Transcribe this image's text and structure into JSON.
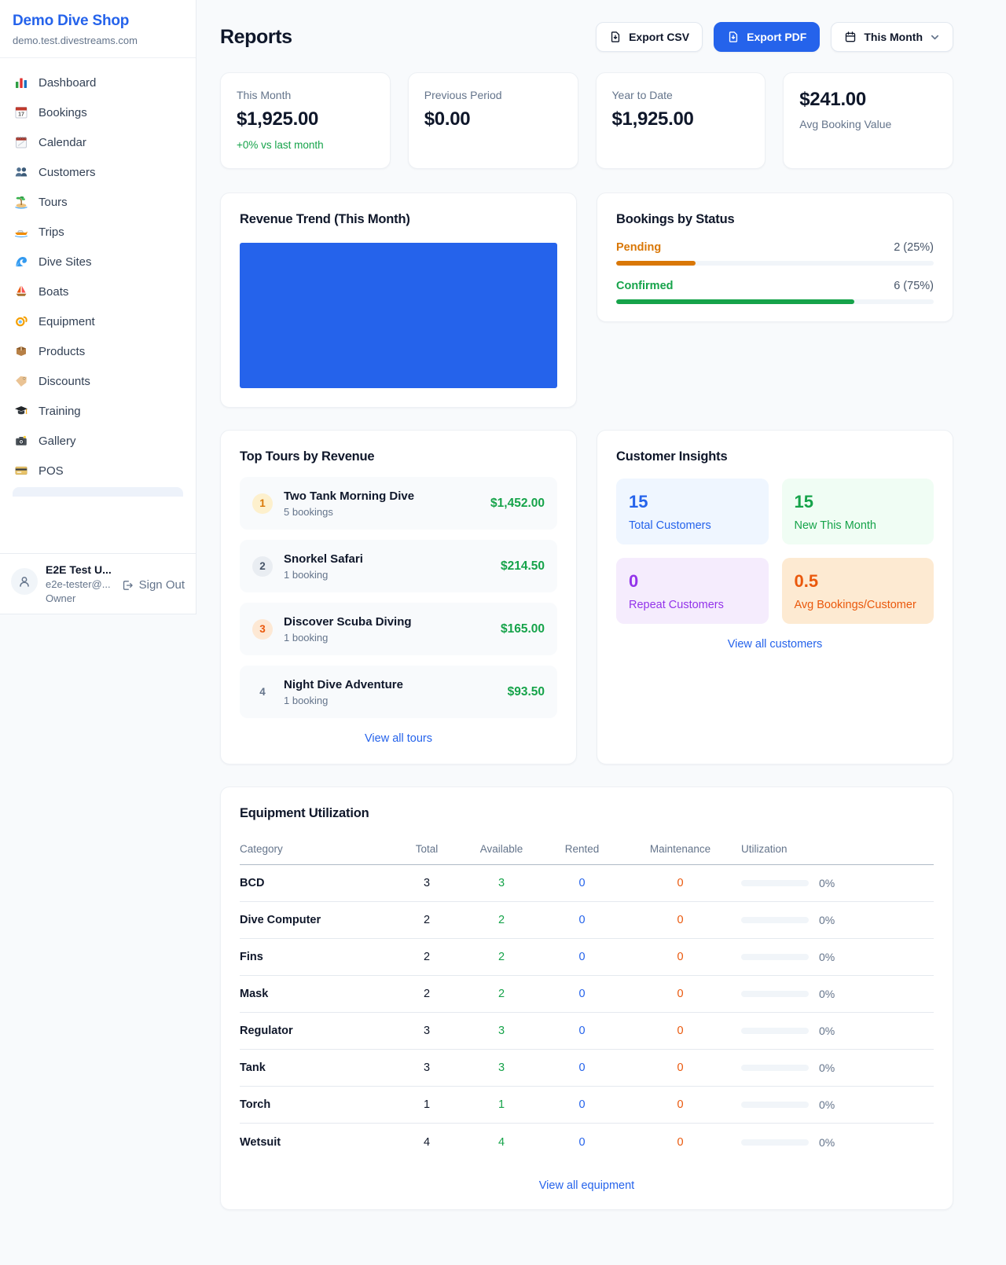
{
  "colors": {
    "accent": "#2563eb",
    "green": "#16a34a",
    "orange": "#ea580c",
    "amber": "#d97706",
    "purple": "#9333ea"
  },
  "sidebar": {
    "shop_name": "Demo Dive Shop",
    "shop_domain": "demo.test.divestreams.com",
    "items": [
      {
        "icon": "bar-chart-icon",
        "label": "Dashboard"
      },
      {
        "icon": "calendar-date-icon",
        "label": "Bookings"
      },
      {
        "icon": "spiral-calendar-icon",
        "label": "Calendar"
      },
      {
        "icon": "people-icon",
        "label": "Customers"
      },
      {
        "icon": "island-icon",
        "label": "Tours"
      },
      {
        "icon": "speedboat-icon",
        "label": "Trips"
      },
      {
        "icon": "wave-icon",
        "label": "Dive Sites"
      },
      {
        "icon": "sailboat-icon",
        "label": "Boats"
      },
      {
        "icon": "dive-mask-icon",
        "label": "Equipment"
      },
      {
        "icon": "package-icon",
        "label": "Products"
      },
      {
        "icon": "tag-icon",
        "label": "Discounts"
      },
      {
        "icon": "graduation-cap-icon",
        "label": "Training"
      },
      {
        "icon": "camera-icon",
        "label": "Gallery"
      },
      {
        "icon": "credit-card-icon",
        "label": "POS"
      }
    ],
    "user": {
      "name": "E2E Test U...",
      "email": "e2e-tester@...",
      "role": "Owner",
      "sign_out_label": "Sign Out"
    }
  },
  "header": {
    "title": "Reports",
    "export_csv_label": "Export CSV",
    "export_pdf_label": "Export PDF",
    "period_label": "This Month"
  },
  "stats": {
    "cards": [
      {
        "label": "This Month",
        "value": "$1,925.00",
        "delta": "+0% vs last month"
      },
      {
        "label": "Previous Period",
        "value": "$0.00"
      },
      {
        "label": "Year to Date",
        "value": "$1,925.00"
      },
      {
        "label": "Avg Booking Value",
        "value": "$241.00"
      }
    ]
  },
  "revenue_trend": {
    "title": "Revenue Trend (This Month)",
    "bar_color": "#2563eb",
    "chart": {
      "type": "bar",
      "note": "single full-width solid bar block"
    }
  },
  "bookings_by_status": {
    "title": "Bookings by Status",
    "rows": [
      {
        "label": "Pending",
        "count_text": "2 (25%)",
        "percent": 25,
        "color": "#d97706"
      },
      {
        "label": "Confirmed",
        "count_text": "6 (75%)",
        "percent": 75,
        "color": "#16a34a"
      }
    ]
  },
  "top_tours": {
    "title": "Top Tours by Revenue",
    "view_all_label": "View all tours",
    "rows": [
      {
        "rank": "1",
        "name": "Two Tank Morning Dive",
        "bookings": "5 bookings",
        "revenue": "$1,452.00"
      },
      {
        "rank": "2",
        "name": "Snorkel Safari",
        "bookings": "1 booking",
        "revenue": "$214.50"
      },
      {
        "rank": "3",
        "name": "Discover Scuba Diving",
        "bookings": "1 booking",
        "revenue": "$165.00"
      },
      {
        "rank": "4",
        "name": "Night Dive Adventure",
        "bookings": "1 booking",
        "revenue": "$93.50"
      }
    ]
  },
  "customer_insights": {
    "title": "Customer Insights",
    "view_all_label": "View all customers",
    "tiles": [
      {
        "value": "15",
        "label": "Total Customers",
        "bg": "#eff6ff",
        "fg": "#2563eb"
      },
      {
        "value": "15",
        "label": "New This Month",
        "bg": "#f0fdf4",
        "fg": "#16a34a"
      },
      {
        "value": "0",
        "label": "Repeat Customers",
        "bg": "#f5ecfd",
        "fg": "#9333ea"
      },
      {
        "value": "0.5",
        "label": "Avg Bookings/Customer",
        "bg": "#fdead2",
        "fg": "#ea580c"
      }
    ]
  },
  "equipment": {
    "title": "Equipment Utilization",
    "view_all_label": "View all equipment",
    "columns": [
      "Category",
      "Total",
      "Available",
      "Rented",
      "Maintenance",
      "Utilization"
    ],
    "value_colors": {
      "available": "#16a34a",
      "rented": "#2563eb",
      "maintenance": "#ea580c"
    },
    "rows": [
      {
        "category": "BCD",
        "total": "3",
        "available": "3",
        "rented": "0",
        "maintenance": "0",
        "utilization": "0%",
        "utilization_pct": 0
      },
      {
        "category": "Dive Computer",
        "total": "2",
        "available": "2",
        "rented": "0",
        "maintenance": "0",
        "utilization": "0%",
        "utilization_pct": 0
      },
      {
        "category": "Fins",
        "total": "2",
        "available": "2",
        "rented": "0",
        "maintenance": "0",
        "utilization": "0%",
        "utilization_pct": 0
      },
      {
        "category": "Mask",
        "total": "2",
        "available": "2",
        "rented": "0",
        "maintenance": "0",
        "utilization": "0%",
        "utilization_pct": 0
      },
      {
        "category": "Regulator",
        "total": "3",
        "available": "3",
        "rented": "0",
        "maintenance": "0",
        "utilization": "0%",
        "utilization_pct": 0
      },
      {
        "category": "Tank",
        "total": "3",
        "available": "3",
        "rented": "0",
        "maintenance": "0",
        "utilization": "0%",
        "utilization_pct": 0
      },
      {
        "category": "Torch",
        "total": "1",
        "available": "1",
        "rented": "0",
        "maintenance": "0",
        "utilization": "0%",
        "utilization_pct": 0
      },
      {
        "category": "Wetsuit",
        "total": "4",
        "available": "4",
        "rented": "0",
        "maintenance": "0",
        "utilization": "0%",
        "utilization_pct": 0
      }
    ]
  }
}
